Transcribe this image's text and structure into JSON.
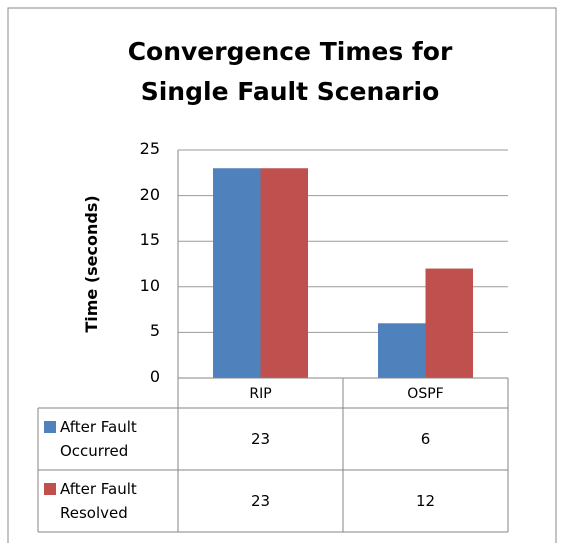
{
  "chart_data": {
    "type": "bar",
    "title": "Convergence Times for Single Fault Scenario",
    "y_label": "Time (seconds)",
    "categories": [
      "RIP",
      "OSPF"
    ],
    "series": [
      {
        "name": "After Fault Occurred",
        "color": "#4f81bd",
        "values": [
          23,
          6
        ]
      },
      {
        "name": "After Fault Resolved",
        "color": "#c0504d",
        "values": [
          23,
          12
        ]
      }
    ],
    "ylim": [
      0,
      25
    ],
    "yticks": [
      0,
      5,
      10,
      15,
      20,
      25
    ],
    "grid": true,
    "data_table": true
  }
}
